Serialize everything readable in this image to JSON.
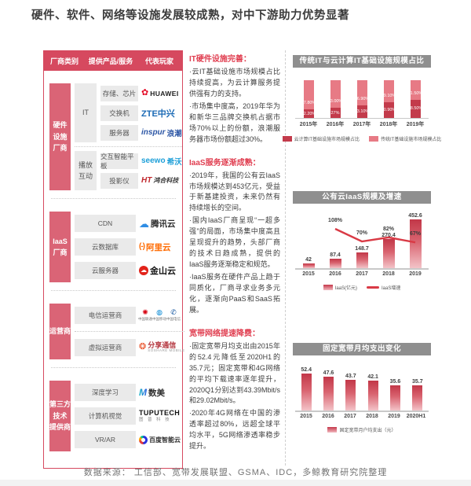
{
  "page": {
    "title": "硬件、软件、网络等设施发展较成熟，对中下游助力优势显著",
    "source": "数据来源： 工信部、宽带发展联盟、GSMA、IDC，多鲸教育研究院整理"
  },
  "table": {
    "headers": [
      "厂商类别",
      "提供产品/服务",
      "代表玩家"
    ],
    "groups": [
      {
        "category": "硬件\n设施\n厂商",
        "blocks": [
          {
            "label": "IT",
            "rows": [
              {
                "product": "存储、芯片",
                "vendor": {
                  "logo": "huawei",
                  "icon": "flower-icon",
                  "text": "HUAWEI"
                }
              },
              {
                "product": "交换机",
                "vendor": {
                  "logo": "zte",
                  "text": "ZTE中兴"
                }
              },
              {
                "product": "服务器",
                "vendor": {
                  "logo": "inspur",
                  "text": "inspur",
                  "text2": "浪潮"
                }
              }
            ]
          },
          {
            "label": "播放\n互动",
            "rows": [
              {
                "product": "交互智能平板",
                "vendor": {
                  "logo": "seewo",
                  "text": "seewo",
                  "text2": "希沃"
                }
              },
              {
                "product": "投影仪",
                "vendor": {
                  "logo": "honghe",
                  "icon": "ht-stripes-icon",
                  "text": "鸿合科技"
                }
              }
            ]
          }
        ]
      },
      {
        "category": "IaaS\n厂商",
        "blocks": [
          {
            "rows": [
              {
                "product": "CDN",
                "vendor": {
                  "logo": "tencent",
                  "icon": "cloud-icon",
                  "text": "腾讯云"
                }
              },
              {
                "product": "云数据库",
                "vendor": {
                  "logo": "alibaba",
                  "icon": "bracket-dash-icon",
                  "text": "阿里云"
                }
              },
              {
                "product": "云服务器",
                "vendor": {
                  "logo": "kingsoft",
                  "icon": "cloud-circle-icon",
                  "text": "金山云"
                }
              }
            ]
          }
        ]
      },
      {
        "category": "运营商",
        "blocks": [
          {
            "rows": [
              {
                "product": "电信运营商",
                "vendor": {
                  "logo": "telecom-trio",
                  "items": [
                    {
                      "icon": "unicom-knot-icon",
                      "text": "中国联通"
                    },
                    {
                      "icon": "mobile-icon",
                      "text": "中国移动"
                    },
                    {
                      "icon": "telecom-icon",
                      "text": "中国电信"
                    }
                  ]
                }
              }
            ]
          },
          {
            "rows": [
              {
                "product": "虚拟运营商",
                "vendor": {
                  "logo": "soshare",
                  "icon": "share-globe-icon",
                  "text": "分享通信",
                  "subtext": "SOSHARE MOBILE"
                }
              }
            ]
          }
        ]
      },
      {
        "category": "第三方\n技术\n提供商",
        "blocks": [
          {
            "rows": [
              {
                "product": "深度学习",
                "vendor": {
                  "logo": "shumei",
                  "icon": "m-arrows-icon",
                  "text": "数美"
                }
              },
              {
                "product": "计算机视觉",
                "vendor": {
                  "logo": "tuputech",
                  "text": "TUPUTECH",
                  "subtext": "图 普 科 技"
                }
              },
              {
                "product": "VR/AR",
                "vendor": {
                  "logo": "baidu",
                  "icon": "baidu-ring-icon",
                  "text": "百度智能云"
                }
              }
            ]
          }
        ]
      }
    ]
  },
  "notes": [
    {
      "heading": "IT硬件设施完善：",
      "bullets": [
        "·云IT基础设施市场规模占比持续提高，为云计算服务提供强有力的支持。",
        "·市场集中度高，2019年华为和新华三品牌交换机占据市场70%以上的份额，浪潮服务器市场份额超过30%。"
      ]
    },
    {
      "heading": "IaaS服务逐渐成熟：",
      "bullets": [
        "·2019年，我国的公有云IaaS市场规模达到453亿元，受益于新基建投资，未来仍然有持续增长的空间。",
        "·国内IaaS厂商呈现“一超多强”的局面，市场集中度高且呈现提升的趋势，头部厂商的技术日趋成熟，提供的IaaS服务逐渐稳定和规范。",
        "·IaaS服务在硬件产品上趋于同质化，厂商寻求业务多元化，逐渐向PaaS和SaaS拓展。"
      ]
    },
    {
      "heading": "宽带网络提速降费：",
      "bullets": [
        "·固定宽带月均支出由2015年的52.4元降低至2020H1的35.7元；固定宽带和4G网络的平均下载速率逐年提升，2020Q1分别达到43.39Mbit/s和29.02Mbit/s。",
        "·2020年4G网络在中国的渗透率超过80%，远超全球平均水平，5G网络渗透率稳步提升。"
      ]
    }
  ],
  "chart_data": [
    {
      "type": "bar",
      "variant": "stacked",
      "title": "传统IT与云计算IT基础设施规模占比",
      "categories": [
        "2015年",
        "2016年",
        "2017年",
        "2018年",
        "2019年"
      ],
      "series": [
        {
          "name": "云计算IT基础设施市场规模占比",
          "color": "#c33b4b",
          "values": [
            22.2,
            27,
            33.1,
            40.9,
            48.5
          ],
          "labels": [
            "22.20%",
            "27%",
            "33.10%",
            "40.90%",
            "48.50%"
          ]
        },
        {
          "name": "传统IT基础设施市场规模占比",
          "color": "#e77a85",
          "values": [
            77.8,
            73,
            66.9,
            59.1,
            51.5
          ],
          "labels": [
            "77.80%",
            "73.00%",
            "66.90%",
            "59.10%",
            "51.50%"
          ]
        }
      ],
      "ylim": [
        0,
        100
      ],
      "grid": false,
      "legend_position": "bottom"
    },
    {
      "type": "bar-line",
      "title": "公有云IaaS规模及增速",
      "categories": [
        "2015",
        "2016",
        "2017",
        "2018",
        "2019"
      ],
      "series": [
        {
          "kind": "bar",
          "name": "IaaS(亿元)",
          "values": [
            42,
            87.4,
            148.7,
            270.4,
            452.6
          ],
          "labels": [
            "42",
            "87.4",
            "148.7",
            "270.4",
            "452.6"
          ]
        },
        {
          "kind": "line",
          "name": "IaaS增速",
          "color": "#d93a45",
          "values": [
            null,
            108,
            70,
            82,
            67
          ],
          "labels": [
            "",
            "108%",
            "70%",
            "82%",
            "67%"
          ]
        }
      ],
      "grid": false,
      "legend_position": "bottom"
    },
    {
      "type": "bar",
      "title": "固定宽带月均支出变化",
      "categories": [
        "2015",
        "2016",
        "2017",
        "2018",
        "2019",
        "2020H1"
      ],
      "series": [
        {
          "name": "固定宽带月户均支出（元）",
          "values": [
            52.4,
            47.6,
            43.7,
            42.1,
            35.6,
            35.7
          ],
          "labels": [
            "52.4",
            "47.6",
            "43.7",
            "42.1",
            "35.6",
            "35.7"
          ]
        }
      ],
      "grid": false,
      "legend_position": "bottom"
    }
  ],
  "colors": {
    "accent_red": "#d6495f",
    "category_red": "#da6476",
    "stacked_dark": "#c33b4b",
    "stacked_light": "#e77a85",
    "line_red": "#d93a45",
    "chart_title_bg": "#8f8f8f"
  }
}
